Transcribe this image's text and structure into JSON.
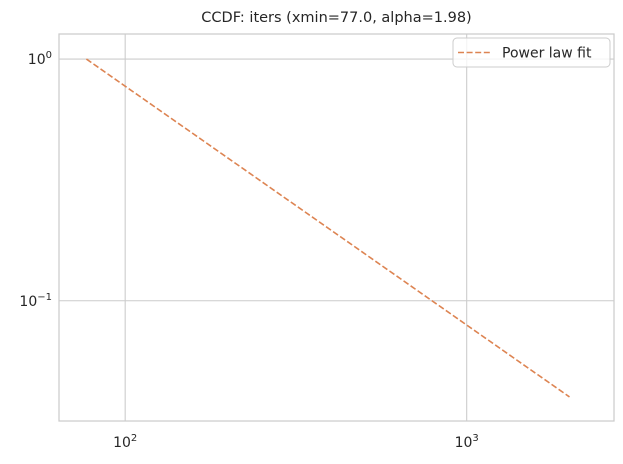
{
  "chart_data": {
    "type": "line",
    "title": "CCDF: iters (xmin=77.0, alpha=1.98)",
    "xlabel": "",
    "ylabel": "",
    "x_scale": "log",
    "y_scale": "log",
    "xlim": [
      64,
      2700
    ],
    "ylim": [
      0.0318,
      1.27
    ],
    "grid": true,
    "legend_position": "top-right",
    "x_ticks": [
      {
        "value": 100,
        "base": "10",
        "exp": "2"
      },
      {
        "value": 1000,
        "base": "10",
        "exp": "3"
      }
    ],
    "y_ticks": [
      {
        "value": 1,
        "base": "10",
        "exp": "0"
      },
      {
        "value": 0.1,
        "base": "10",
        "exp": "−1"
      }
    ],
    "series": [
      {
        "name": "Power law fit",
        "style": "dashed",
        "color": "#dd8452",
        "x": [
          77,
          2000
        ],
        "y": [
          1.0,
          0.04
        ]
      }
    ]
  },
  "colors": {
    "axes_edge": "#cccccc",
    "grid": "#cccccc",
    "text": "#262626",
    "fit_line": "#dd8452"
  }
}
